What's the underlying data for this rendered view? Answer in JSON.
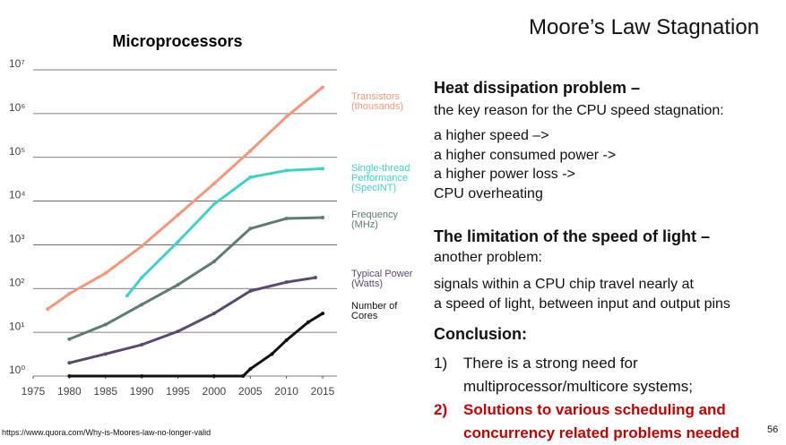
{
  "slide": {
    "title": "Moore’s Law Stagnation",
    "heat_heading": "Heat dissipation problem –",
    "heat_lines": [
      "the key reason for the CPU speed stagnation:",
      "a higher speed –>",
      "a higher consumed power ->",
      "a higher power loss ->",
      "CPU overheating"
    ],
    "light_heading": "The limitation of the speed of light –",
    "light_lines": [
      "another problem:",
      "signals within a CPU chip travel nearly at",
      "a speed of light, between input and output pins"
    ],
    "conclusion_heading": "Conclusion:",
    "conclusions": [
      {
        "number": "1)",
        "text": "There is a strong need for multiprocessor/multicore systems;"
      },
      {
        "number": "2)",
        "text": "Solutions to various scheduling and concurrency related problems needed"
      }
    ],
    "source": "https://www.quora.com/Why-is-Moores-law-no-longer-valid",
    "page_number": "56"
  },
  "chart_data": {
    "type": "line",
    "title": "Microprocessors",
    "log_scale_y": true,
    "grid": true,
    "xlim": [
      1975,
      2017
    ],
    "xticks": [
      1975,
      1980,
      1985,
      1990,
      1995,
      2000,
      2005,
      2010,
      2015
    ],
    "ylim": [
      1,
      10000000
    ],
    "yticks": [
      {
        "value": 1,
        "label": "10⁰"
      },
      {
        "value": 10,
        "label": "10¹"
      },
      {
        "value": 100,
        "label": "10²"
      },
      {
        "value": 1000,
        "label": "10³"
      },
      {
        "value": 10000,
        "label": "10⁴"
      },
      {
        "value": 100000,
        "label": "10⁵"
      },
      {
        "value": 1000000,
        "label": "10⁶"
      },
      {
        "value": 10000000,
        "label": "10⁷"
      }
    ],
    "series": [
      {
        "name": "Transistors (thousands)",
        "color": "#f4967a",
        "x": [
          1977,
          1980,
          1985,
          1990,
          1995,
          2000,
          2005,
          2010,
          2015
        ],
        "values": [
          34,
          76,
          224,
          930,
          4800,
          25000,
          140000,
          850000,
          4000000
        ]
      },
      {
        "name": "Single-thread Performance (SpecINT)",
        "color": "#3fd1c6",
        "x": [
          1988,
          1990,
          1995,
          2000,
          2005,
          2010,
          2015
        ],
        "values": [
          69,
          178,
          1170,
          8500,
          35000,
          50000,
          55000
        ]
      },
      {
        "name": "Frequency (MHz)",
        "color": "#5e7a74",
        "x": [
          1980,
          1985,
          1990,
          1995,
          2000,
          2005,
          2010,
          2015
        ],
        "values": [
          7,
          15,
          43,
          122,
          415,
          2350,
          4000,
          4200
        ]
      },
      {
        "name": "Typical Power (Watts)",
        "color": "#5a4a6e",
        "x": [
          1980,
          1985,
          1990,
          1995,
          2000,
          2005,
          2010,
          2014
        ],
        "values": [
          2,
          3.2,
          5.2,
          10.5,
          27,
          88,
          140,
          178
        ]
      },
      {
        "name": "Number of Cores",
        "color": "#111111",
        "x": [
          1980,
          1990,
          2000,
          2004,
          2005,
          2008,
          2010,
          2013,
          2015
        ],
        "values": [
          1,
          1,
          1,
          1,
          1.45,
          3.2,
          6.6,
          17,
          27
        ]
      }
    ]
  }
}
